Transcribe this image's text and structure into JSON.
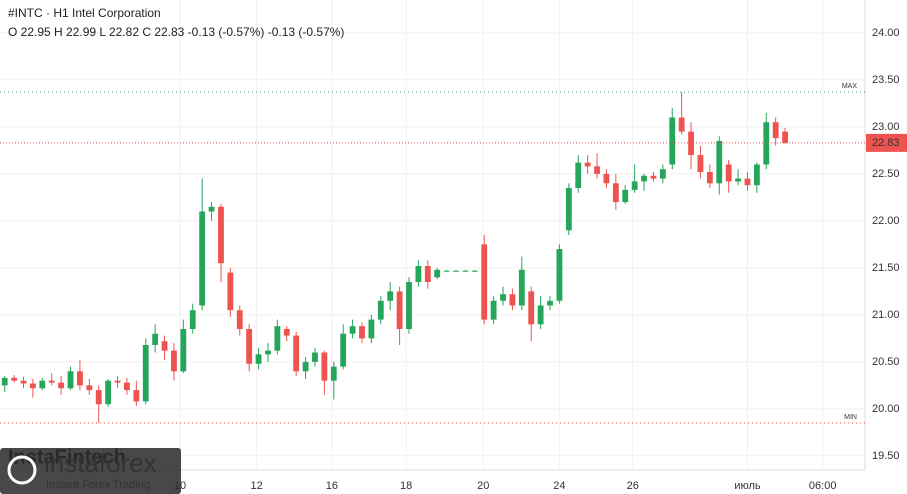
{
  "header": {
    "symbol": "#INTC · H1 Intel Corporation",
    "quote": "O 22.95 H 22.99 L 22.82 C 22.83 -0.13 (-0.57%) -0.13 (-0.57%)"
  },
  "watermark": "InstaFintech",
  "logo": {
    "name": "instaforex",
    "tagline": "Instant Forex Trading"
  },
  "chart_data": {
    "type": "candlestick",
    "up_color": "#26a65b",
    "down_color": "#ef5350",
    "grid": true,
    "xlim": [
      -0.5,
      91.5
    ],
    "xticks": [
      {
        "value": 18.65,
        "label": "10"
      },
      {
        "value": 26.8,
        "label": "12"
      },
      {
        "value": 34.8,
        "label": "16"
      },
      {
        "value": 42.7,
        "label": "18"
      },
      {
        "value": 50.9,
        "label": "20"
      },
      {
        "value": 59,
        "label": "24"
      },
      {
        "value": 66.8,
        "label": "26"
      },
      {
        "value": 79,
        "label": "июль"
      },
      {
        "value": 87,
        "label": "06:00"
      }
    ],
    "ylim": [
      19.35,
      24.35
    ],
    "yticks": [
      {
        "value": 19.5,
        "label": "19.50"
      },
      {
        "value": 20,
        "label": "20.00"
      },
      {
        "value": 20.5,
        "label": "20.50"
      },
      {
        "value": 21,
        "label": "21.00"
      },
      {
        "value": 21.5,
        "label": "21.50"
      },
      {
        "value": 22,
        "label": "22.00"
      },
      {
        "value": 22.5,
        "label": "22.50"
      },
      {
        "value": 23,
        "label": "23.00"
      },
      {
        "value": 23.5,
        "label": "23.50"
      },
      {
        "value": 24,
        "label": "24.00"
      }
    ],
    "max_line": {
      "value": 23.37,
      "label": "MAX",
      "color": "#26a65b"
    },
    "min_line": {
      "value": 19.85,
      "label": "MIN",
      "color": "#ef5350"
    },
    "price_line": {
      "value": 22.83,
      "label": "22.83",
      "color": "#ef5350"
    },
    "ohlc": [
      [
        20.25,
        20.35,
        20.18,
        20.33
      ],
      [
        20.33,
        20.36,
        20.28,
        20.3
      ],
      [
        20.3,
        20.34,
        20.22,
        20.27
      ],
      [
        20.27,
        20.32,
        20.12,
        20.22
      ],
      [
        20.22,
        20.33,
        20.2,
        20.3
      ],
      [
        20.3,
        20.38,
        20.25,
        20.28
      ],
      [
        20.28,
        20.35,
        20.15,
        20.22
      ],
      [
        20.22,
        20.45,
        20.2,
        20.4
      ],
      [
        20.4,
        20.52,
        20.2,
        20.25
      ],
      [
        20.25,
        20.32,
        20.15,
        20.2
      ],
      [
        20.2,
        20.25,
        19.85,
        20.05
      ],
      [
        20.05,
        20.32,
        20.02,
        20.3
      ],
      [
        20.3,
        20.35,
        20.22,
        20.28
      ],
      [
        20.28,
        20.33,
        20.15,
        20.2
      ],
      [
        20.2,
        20.3,
        20.03,
        20.08
      ],
      [
        20.08,
        20.75,
        20.05,
        20.68
      ],
      [
        20.68,
        20.9,
        20.6,
        20.8
      ],
      [
        20.72,
        20.78,
        20.52,
        20.62
      ],
      [
        20.62,
        20.7,
        20.3,
        20.4
      ],
      [
        20.4,
        20.95,
        20.38,
        20.85
      ],
      [
        20.85,
        21.12,
        20.8,
        21.05
      ],
      [
        21.1,
        22.45,
        21.05,
        22.1
      ],
      [
        22.1,
        22.2,
        22.0,
        22.15
      ],
      [
        22.15,
        22.18,
        21.35,
        21.55
      ],
      [
        21.45,
        21.5,
        20.98,
        21.05
      ],
      [
        21.05,
        21.1,
        20.78,
        20.85
      ],
      [
        20.85,
        20.9,
        20.4,
        20.48
      ],
      [
        20.48,
        20.65,
        20.42,
        20.58
      ],
      [
        20.58,
        20.7,
        20.5,
        20.62
      ],
      [
        20.62,
        20.95,
        20.58,
        20.88
      ],
      [
        20.85,
        20.88,
        20.72,
        20.78
      ],
      [
        20.78,
        20.82,
        20.35,
        20.4
      ],
      [
        20.4,
        20.55,
        20.32,
        20.5
      ],
      [
        20.5,
        20.65,
        20.45,
        20.6
      ],
      [
        20.6,
        20.62,
        20.15,
        20.3
      ],
      [
        20.3,
        20.5,
        20.1,
        20.45
      ],
      [
        20.45,
        20.9,
        20.42,
        20.8
      ],
      [
        20.8,
        20.95,
        20.75,
        20.88
      ],
      [
        20.88,
        20.92,
        20.7,
        20.75
      ],
      [
        20.75,
        21.0,
        20.7,
        20.95
      ],
      [
        20.95,
        21.2,
        20.9,
        21.15
      ],
      [
        21.15,
        21.35,
        21.05,
        21.25
      ],
      [
        21.25,
        21.3,
        20.68,
        20.85
      ],
      [
        20.85,
        21.4,
        20.8,
        21.35
      ],
      [
        21.35,
        21.58,
        21.3,
        21.52
      ],
      [
        21.52,
        21.58,
        21.28,
        21.35
      ],
      [
        21.4,
        21.5,
        21.38,
        21.48
      ],
      [
        21.47,
        21.48,
        21.46,
        21.47
      ],
      [
        21.47,
        21.48,
        21.46,
        21.47
      ],
      [
        21.47,
        21.48,
        21.46,
        21.47
      ],
      [
        21.47,
        21.48,
        21.46,
        21.47
      ],
      [
        21.75,
        21.85,
        20.9,
        20.95
      ],
      [
        20.95,
        21.2,
        20.9,
        21.15
      ],
      [
        21.15,
        21.3,
        21.1,
        21.22
      ],
      [
        21.22,
        21.28,
        21.05,
        21.1
      ],
      [
        21.1,
        21.62,
        21.05,
        21.48
      ],
      [
        21.25,
        21.3,
        20.72,
        20.9
      ],
      [
        20.9,
        21.2,
        20.85,
        21.1
      ],
      [
        21.1,
        21.2,
        21.05,
        21.15
      ],
      [
        21.15,
        21.75,
        21.12,
        21.7
      ],
      [
        21.9,
        22.4,
        21.85,
        22.35
      ],
      [
        22.35,
        22.7,
        22.3,
        22.62
      ],
      [
        22.62,
        22.7,
        22.5,
        22.58
      ],
      [
        22.58,
        22.72,
        22.45,
        22.5
      ],
      [
        22.5,
        22.55,
        22.35,
        22.4
      ],
      [
        22.4,
        22.5,
        22.12,
        22.2
      ],
      [
        22.2,
        22.38,
        22.18,
        22.33
      ],
      [
        22.33,
        22.6,
        22.3,
        22.42
      ],
      [
        22.42,
        22.5,
        22.32,
        22.48
      ],
      [
        22.48,
        22.52,
        22.42,
        22.45
      ],
      [
        22.45,
        22.6,
        22.4,
        22.55
      ],
      [
        22.6,
        23.2,
        22.55,
        23.1
      ],
      [
        23.1,
        23.37,
        22.92,
        22.95
      ],
      [
        22.95,
        23.05,
        22.55,
        22.7
      ],
      [
        22.7,
        22.8,
        22.45,
        22.52
      ],
      [
        22.52,
        22.6,
        22.35,
        22.4
      ],
      [
        22.4,
        22.9,
        22.28,
        22.85
      ],
      [
        22.6,
        22.65,
        22.3,
        22.42
      ],
      [
        22.42,
        22.55,
        22.38,
        22.45
      ],
      [
        22.45,
        22.52,
        22.32,
        22.38
      ],
      [
        22.38,
        22.62,
        22.3,
        22.6
      ],
      [
        22.6,
        23.15,
        22.55,
        23.05
      ],
      [
        23.05,
        23.1,
        22.8,
        22.88
      ],
      [
        22.95,
        22.99,
        22.82,
        22.83
      ]
    ]
  }
}
